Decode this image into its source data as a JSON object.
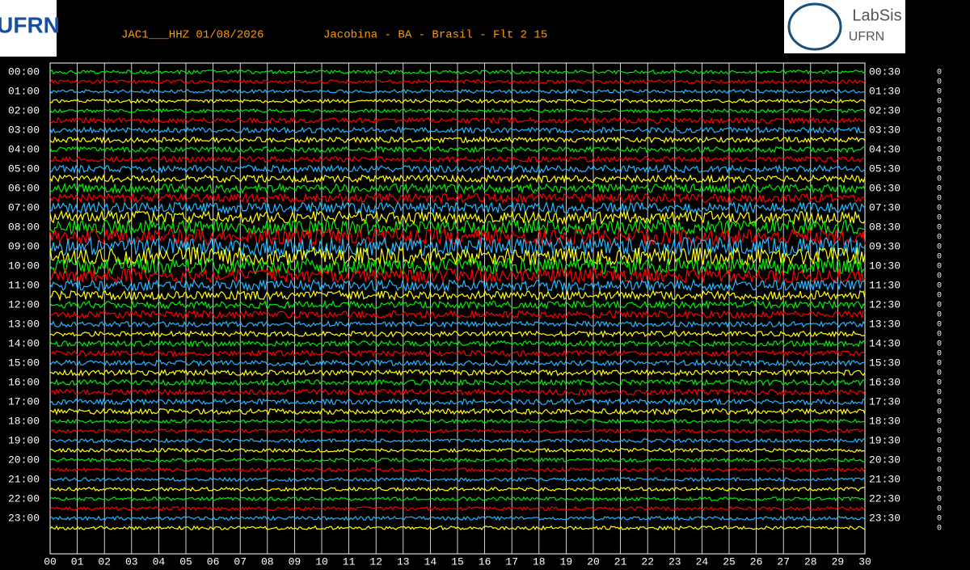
{
  "chart_data": {
    "type": "helicorder",
    "title": "JAC1___HHZ 01/08/2026",
    "subtitle": "Jacobina - BA - Brasil - Flt 2 15",
    "logo_left": "UFRN",
    "logo_right": [
      "LabSis",
      "UFRN"
    ],
    "colors": [
      "#00ee00",
      "#ff0000",
      "#20b8ff",
      "#ffff00"
    ],
    "left_labels": [
      "00:00",
      "01:00",
      "02:00",
      "03:00",
      "04:00",
      "05:00",
      "06:00",
      "07:00",
      "08:00",
      "09:00",
      "10:00",
      "11:00",
      "12:00",
      "13:00",
      "14:00",
      "15:00",
      "16:00",
      "17:00",
      "18:00",
      "19:00",
      "20:00",
      "21:00",
      "22:00",
      "23:00"
    ],
    "right_labels": [
      "00:30",
      "01:30",
      "02:30",
      "03:30",
      "04:30",
      "05:30",
      "06:30",
      "07:30",
      "08:30",
      "09:30",
      "10:30",
      "11:30",
      "12:30",
      "13:30",
      "14:30",
      "15:30",
      "16:30",
      "17:30",
      "18:30",
      "19:30",
      "20:30",
      "21:30",
      "22:30",
      "23:30"
    ],
    "xlim": [
      0,
      30
    ],
    "xticks": [
      {
        "value": 0,
        "label": "00"
      },
      {
        "value": 1,
        "label": "01"
      },
      {
        "value": 2,
        "label": "02"
      },
      {
        "value": 3,
        "label": "03"
      },
      {
        "value": 4,
        "label": "04"
      },
      {
        "value": 5,
        "label": "05"
      },
      {
        "value": 6,
        "label": "06"
      },
      {
        "value": 7,
        "label": "07"
      },
      {
        "value": 8,
        "label": "08"
      },
      {
        "value": 9,
        "label": "09"
      },
      10,
      11,
      12,
      13,
      14,
      15,
      16,
      17,
      18,
      19,
      20,
      21,
      22,
      23,
      24,
      25,
      26,
      27,
      28,
      29,
      30
    ],
    "amplitudes": [
      2,
      2,
      2,
      2,
      2,
      3,
      3,
      3,
      3,
      3,
      4,
      4,
      5,
      5,
      6,
      7,
      8,
      9,
      10,
      10,
      9,
      8,
      6,
      5,
      4,
      4,
      3,
      3,
      3,
      3,
      3,
      3,
      3,
      3,
      3,
      3,
      2,
      2,
      2,
      2,
      2,
      2,
      2,
      2,
      2,
      2,
      2,
      2
    ],
    "right_values": [
      0,
      0,
      0,
      0,
      0,
      0,
      0,
      0,
      0,
      0,
      0,
      0,
      0,
      0,
      0,
      0,
      0,
      0,
      0,
      0,
      0,
      0,
      0,
      0,
      0,
      0,
      0,
      0,
      0,
      0,
      0,
      0,
      0,
      0,
      0,
      0,
      0,
      0,
      0,
      0,
      0,
      0,
      0,
      0,
      0,
      0,
      0,
      0
    ]
  }
}
